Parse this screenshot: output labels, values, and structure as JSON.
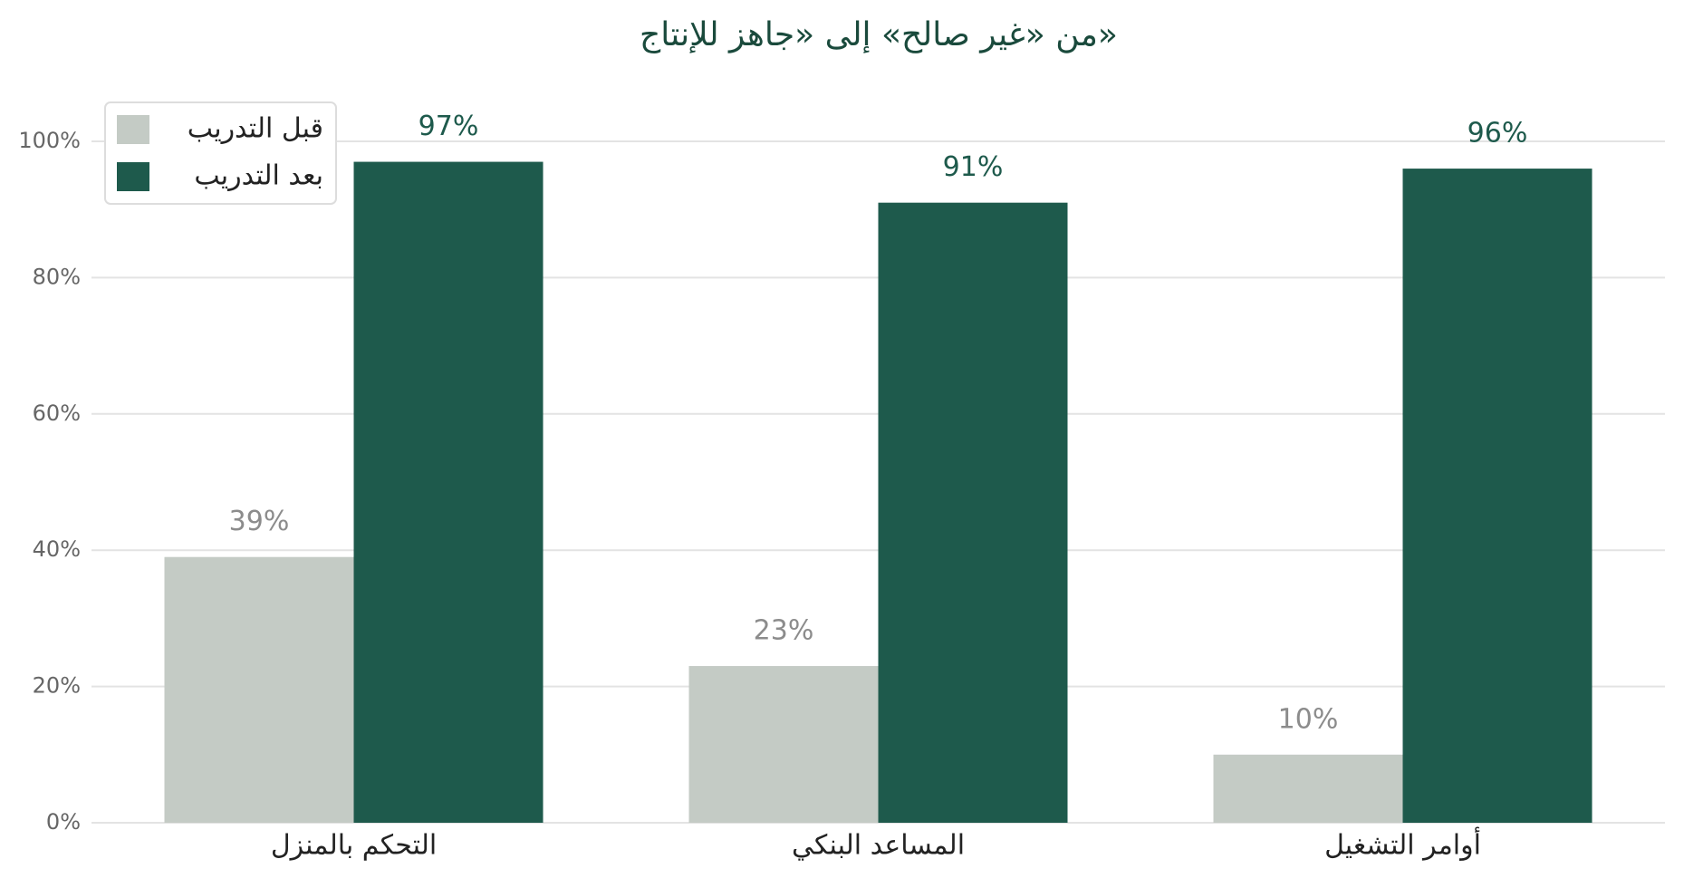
{
  "chart_data": {
    "type": "bar",
    "title": "من «غير صالح» إلى «جاهز للإنتاج»",
    "categories": [
      "التحكم بالمنزل",
      "المساعد البنكي",
      "أوامر التشغيل"
    ],
    "series": [
      {
        "name": "قبل التدريب",
        "color": "#c4cbc5",
        "values": [
          39,
          23,
          10
        ],
        "value_labels": [
          "39%",
          "23%",
          "10%"
        ]
      },
      {
        "name": "بعد التدريب",
        "color": "#1e5a4c",
        "values": [
          97,
          91,
          96
        ],
        "value_labels": [
          "97%",
          "91%",
          "96%"
        ]
      }
    ],
    "ylim": [
      0,
      100
    ],
    "yticks": [
      {
        "value": 0,
        "label": "0%"
      },
      {
        "value": 20,
        "label": "20%"
      },
      {
        "value": 40,
        "label": "40%"
      },
      {
        "value": 60,
        "label": "60%"
      },
      {
        "value": 80,
        "label": "80%"
      },
      {
        "value": 100,
        "label": "100%"
      }
    ],
    "grid": true,
    "legend": "upper left"
  }
}
